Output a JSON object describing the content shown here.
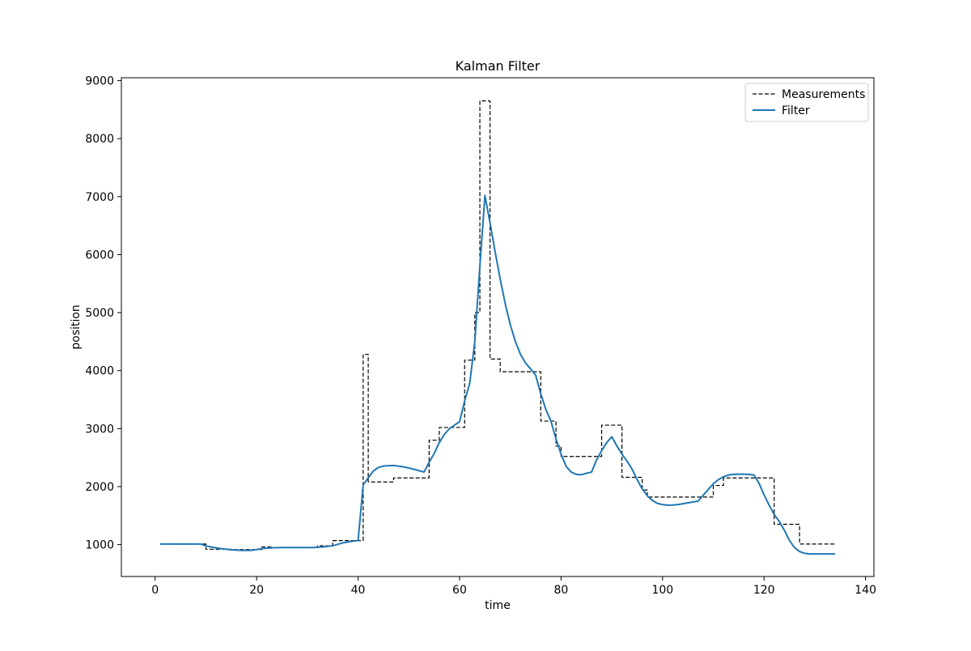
{
  "chart_data": {
    "type": "line",
    "title": "Kalman Filter",
    "xlabel": "time",
    "ylabel": "position",
    "xlim": [
      -6.65,
      141.65
    ],
    "ylim": [
      450,
      9050
    ],
    "xticks": [
      0,
      20,
      40,
      60,
      80,
      100,
      120,
      140
    ],
    "xtick_labels": [
      "0",
      "20",
      "40",
      "60",
      "80",
      "100",
      "120",
      "140"
    ],
    "yticks": [
      1000,
      2000,
      3000,
      4000,
      5000,
      6000,
      7000,
      8000,
      9000
    ],
    "ytick_labels": [
      "1000",
      "2000",
      "3000",
      "4000",
      "5000",
      "6000",
      "7000",
      "8000",
      "9000"
    ],
    "grid": false,
    "legend": {
      "placement": "top-right"
    },
    "series": [
      {
        "name": "Measurements",
        "color": "#000000",
        "style": "dashed",
        "step": true,
        "x": [
          1,
          9,
          10,
          14,
          15,
          20,
          21,
          22,
          23,
          24,
          31,
          32,
          33,
          34,
          35,
          36,
          37,
          38,
          39,
          40,
          41,
          42,
          43,
          44,
          45,
          46,
          47,
          48,
          52,
          53,
          54,
          55,
          56,
          57,
          58,
          60,
          61,
          62,
          63,
          64,
          65,
          66,
          67,
          68,
          69,
          74,
          75,
          76,
          77,
          78,
          79,
          80,
          81,
          82,
          86,
          87,
          88,
          90,
          91,
          92,
          94,
          95,
          96,
          97,
          98,
          108,
          109,
          110,
          111,
          112,
          113,
          114,
          120,
          121,
          122,
          123,
          125,
          126,
          127,
          128,
          133,
          134
        ],
        "y": [
          1010,
          1010,
          920,
          920,
          915,
          915,
          960,
          960,
          950,
          950,
          950,
          980,
          980,
          980,
          1070,
          1070,
          1070,
          1070,
          1070,
          1070,
          4280,
          2080,
          2080,
          2080,
          2080,
          2080,
          2150,
          2150,
          2150,
          2150,
          2800,
          2800,
          3020,
          3020,
          3020,
          3020,
          4180,
          4180,
          5000,
          8650,
          8650,
          4200,
          4200,
          3980,
          3980,
          3980,
          3980,
          3130,
          3130,
          3130,
          2700,
          2520,
          2520,
          2520,
          2520,
          2520,
          3060,
          3060,
          3060,
          2160,
          2160,
          2160,
          1940,
          1820,
          1820,
          1820,
          1820,
          2020,
          2020,
          2150,
          2150,
          2150,
          2150,
          2150,
          1350,
          1350,
          1350,
          1350,
          1010,
          1010,
          1010,
          1010
        ]
      },
      {
        "name": "Filter",
        "color": "#1f77b4",
        "style": "solid",
        "step": false,
        "x": [
          1,
          3,
          5,
          7,
          9,
          10,
          11,
          13,
          15,
          17,
          19,
          21,
          23,
          25,
          27,
          29,
          31,
          33,
          35,
          37,
          39,
          40,
          41,
          42,
          43,
          44,
          45,
          47,
          49,
          51,
          53,
          54,
          55,
          56,
          57,
          58,
          59,
          60,
          61,
          62,
          63,
          64,
          65,
          66,
          67,
          68,
          69,
          70,
          71,
          72,
          73,
          74,
          75,
          76,
          77,
          78,
          79,
          80,
          81,
          82,
          83,
          84,
          85,
          86,
          87,
          88,
          89,
          90,
          91,
          92,
          93,
          94,
          95,
          96,
          97,
          98,
          99,
          100,
          101,
          102,
          103,
          104,
          105,
          106,
          107,
          108,
          109,
          110,
          111,
          112,
          113,
          114,
          115,
          116,
          117,
          118,
          119,
          120,
          121,
          122,
          123,
          124,
          125,
          126,
          127,
          128,
          129,
          130,
          131,
          132,
          133,
          134
        ],
        "y": [
          1010,
          1010,
          1010,
          1010,
          1010,
          980,
          960,
          930,
          910,
          900,
          900,
          930,
          945,
          950,
          950,
          950,
          950,
          960,
          980,
          1030,
          1060,
          1070,
          2030,
          2150,
          2270,
          2330,
          2355,
          2365,
          2340,
          2300,
          2250,
          2420,
          2570,
          2760,
          2900,
          3000,
          3060,
          3120,
          3480,
          3780,
          4500,
          5800,
          7020,
          6550,
          6050,
          5580,
          5150,
          4790,
          4500,
          4280,
          4130,
          4030,
          3920,
          3600,
          3330,
          3130,
          2820,
          2560,
          2350,
          2250,
          2210,
          2205,
          2230,
          2250,
          2460,
          2620,
          2760,
          2860,
          2700,
          2560,
          2440,
          2300,
          2120,
          1960,
          1840,
          1760,
          1710,
          1690,
          1680,
          1682,
          1690,
          1705,
          1720,
          1735,
          1750,
          1850,
          1950,
          2050,
          2120,
          2170,
          2200,
          2210,
          2215,
          2215,
          2210,
          2200,
          2060,
          1860,
          1680,
          1520,
          1400,
          1250,
          1070,
          950,
          880,
          850,
          840,
          840,
          840,
          840,
          840,
          840
        ]
      }
    ]
  }
}
